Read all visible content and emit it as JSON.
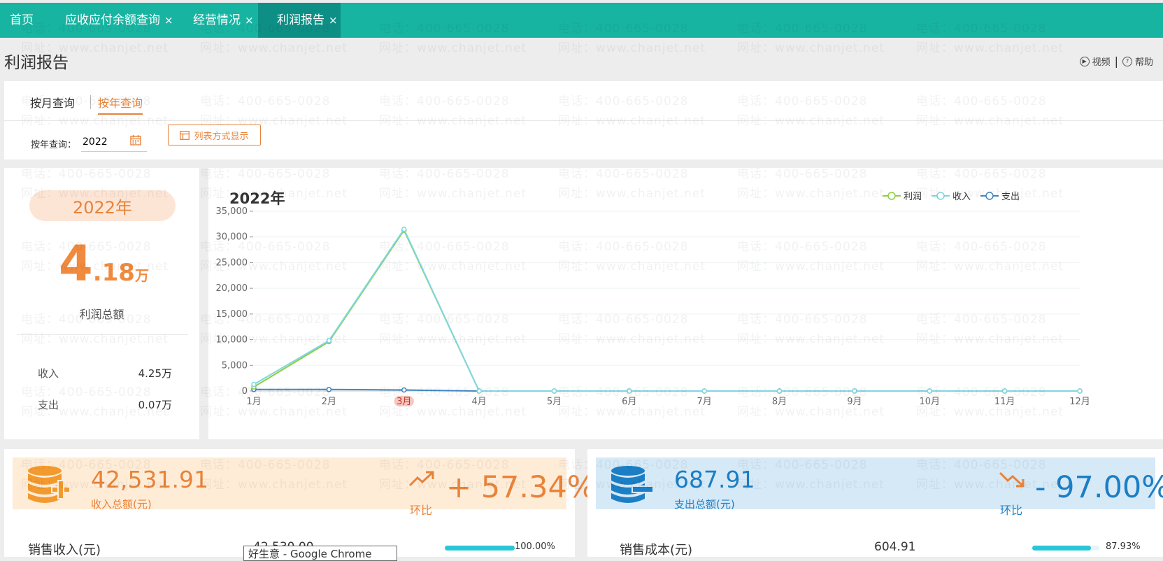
{
  "tabs": [
    {
      "label": "首页",
      "closable": false,
      "active": false
    },
    {
      "label": "应收应付余额查询",
      "closable": true,
      "active": false
    },
    {
      "label": "经营情况",
      "closable": true,
      "active": false
    },
    {
      "label": "利润报告",
      "closable": true,
      "active": true
    }
  ],
  "tab_close_glyph": "×",
  "page_title": "利润报告",
  "top_links": {
    "video": "视频",
    "help": "帮助"
  },
  "query_tabs": {
    "month": "按月查询",
    "year": "按年查询",
    "active": "year"
  },
  "year_filter": {
    "label": "按年查询：",
    "value": "2022"
  },
  "list_button": "列表方式显示",
  "summary": {
    "year_pill": "2022年",
    "profit_int": "4",
    "profit_dec": ".18",
    "profit_unit": "万",
    "profit_label": "利润总额",
    "income_label": "收入",
    "income_value": "4.25万",
    "expense_label": "支出",
    "expense_value": "0.07万"
  },
  "chart_data": {
    "type": "line",
    "title": "2022年",
    "categories": [
      "1月",
      "2月",
      "3月",
      "4月",
      "5月",
      "6月",
      "7月",
      "8月",
      "9月",
      "10月",
      "11月",
      "12月"
    ],
    "highlight_category": "3月",
    "series": [
      {
        "name": "利润",
        "color": "#8ccf3f",
        "values": [
          800,
          9600,
          31300,
          0,
          0,
          0,
          0,
          0,
          0,
          0,
          0,
          0
        ]
      },
      {
        "name": "收入",
        "color": "#7fd6e3",
        "values": [
          1300,
          9800,
          31500,
          0,
          0,
          0,
          0,
          0,
          0,
          0,
          0,
          0
        ]
      },
      {
        "name": "支出",
        "color": "#3f88c5",
        "values": [
          300,
          300,
          200,
          0,
          0,
          0,
          0,
          0,
          0,
          0,
          0,
          0
        ]
      }
    ],
    "yticks": [
      "0",
      "5,000",
      "10,000",
      "15,000",
      "20,000",
      "25,000",
      "30,000",
      "35,000"
    ],
    "ylim": [
      0,
      35000
    ],
    "legend_position": "top-right",
    "grid": true
  },
  "income_card": {
    "amount": "42,531.91",
    "label": "收入总额(元)",
    "hb_label": "环比",
    "pct": "+ 57.34%",
    "trend": "up",
    "row_label": "销售收入(元)",
    "row_value": "42,530.00",
    "row_pct_value": 100.0,
    "row_pct": "100.00%"
  },
  "expense_card": {
    "amount": "687.91",
    "label": "支出总额(元)",
    "hb_label": "环比",
    "pct": "- 97.00%",
    "trend": "down",
    "row_label": "销售成本(元)",
    "row_value": "604.91",
    "row_pct_value": 87.93,
    "row_pct": "87.93%"
  },
  "tooltip_text": "好生意 - Google Chrome",
  "watermark": {
    "phone": "电话：400-665-0028",
    "site": "网址：www.chanjet.net"
  },
  "colors": {
    "teal": "#18b4a2",
    "tab_active": "#0e8f85",
    "orange": "#e8833a",
    "blue": "#1c7ec4"
  }
}
